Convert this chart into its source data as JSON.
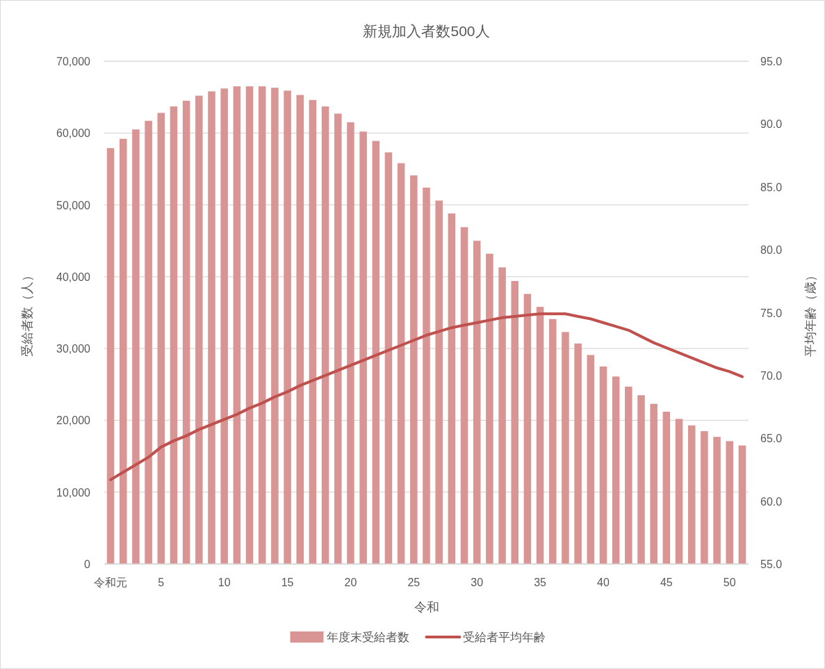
{
  "chart_data": {
    "type": "bar",
    "title": "新規加入者数500人",
    "xlabel": "令和",
    "ylabel": "受給者数（人）",
    "y2label": "平均年齢（歳）",
    "categories": [
      "令和元",
      null,
      null,
      null,
      "5",
      null,
      null,
      null,
      null,
      "10",
      null,
      null,
      null,
      null,
      "15",
      null,
      null,
      null,
      null,
      "20",
      null,
      null,
      null,
      null,
      "25",
      null,
      null,
      null,
      null,
      "30",
      null,
      null,
      null,
      null,
      "35",
      null,
      null,
      null,
      null,
      "40",
      null,
      null,
      null,
      null,
      "45",
      null,
      null,
      null,
      null,
      "50",
      null
    ],
    "series": [
      {
        "name": "年度末受給者数",
        "color": "#d99594",
        "values": [
          57900,
          59200,
          60500,
          61700,
          62800,
          63700,
          64500,
          65200,
          65800,
          66200,
          66500,
          66500,
          66500,
          66300,
          65900,
          65300,
          64600,
          63700,
          62700,
          61500,
          60200,
          58900,
          57300,
          55800,
          54100,
          52400,
          50600,
          48800,
          46900,
          45000,
          43200,
          41300,
          39400,
          37600,
          35800,
          34100,
          32300,
          30700,
          29100,
          27500,
          26100,
          24700,
          23500,
          22300,
          21200,
          20200,
          19300,
          18500,
          17700,
          17100,
          16500
        ]
      },
      {
        "name": "受給者平均年齢",
        "type": "line",
        "axis": "y2",
        "color": "#c0504d",
        "values": [
          61.7,
          62.3,
          62.9,
          63.5,
          64.3,
          64.8,
          65.2,
          65.7,
          66.1,
          66.5,
          66.9,
          67.4,
          67.8,
          68.3,
          68.7,
          69.2,
          69.6,
          70.0,
          70.4,
          70.8,
          71.2,
          71.6,
          72.0,
          72.4,
          72.8,
          73.2,
          73.5,
          73.8,
          74.0,
          74.2,
          74.4,
          74.6,
          74.7,
          74.8,
          74.9,
          74.9,
          74.9,
          74.7,
          74.5,
          74.2,
          73.9,
          73.6,
          73.1,
          72.6,
          72.2,
          71.8,
          71.4,
          71.0,
          70.6,
          70.3,
          69.9
        ]
      }
    ],
    "ylim": [
      0,
      70000
    ],
    "yticks": [
      0,
      {
        "value": 10000,
        "label": "10,000"
      },
      {
        "value": 20000,
        "label": "20,000"
      },
      {
        "value": 30000,
        "label": "30,000"
      },
      {
        "value": 40000,
        "label": "40,000"
      },
      {
        "value": 50000,
        "label": "50,000"
      },
      {
        "value": 60000,
        "label": "60,000"
      },
      {
        "value": 70000,
        "label": "70,000"
      }
    ],
    "y2lim": [
      55,
      95
    ],
    "y2ticks": [
      {
        "value": 55,
        "label": "55.0"
      },
      {
        "value": 60,
        "label": "60.0"
      },
      {
        "value": 65,
        "label": "65.0"
      },
      {
        "value": 70,
        "label": "70.0"
      },
      {
        "value": 75,
        "label": "75.0"
      },
      {
        "value": 80,
        "label": "80.0"
      },
      {
        "value": 85,
        "label": "85.0"
      },
      {
        "value": 90,
        "label": "90.0"
      },
      {
        "value": 95,
        "label": "95.0"
      }
    ],
    "grid": "y",
    "legend": "bottom"
  }
}
